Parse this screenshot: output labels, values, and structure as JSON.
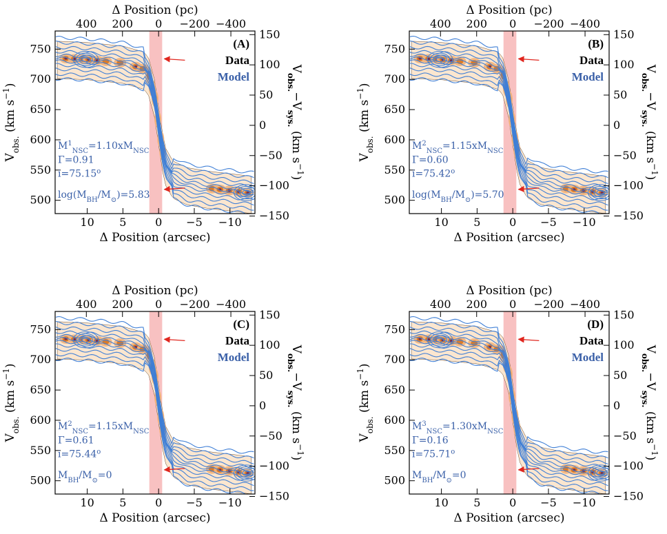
{
  "chart_data": [
    {
      "type": "contour",
      "panel_label": "(A)",
      "legend": [
        "Data",
        "Model"
      ],
      "xlabel": "Δ Position (arcsec)",
      "xlabel_top": "Δ Position (pc)",
      "ylabel": "V_obs. (km s^-1)",
      "ylabel_right": "V_obs.−V_sys. (km s^-1)",
      "xlim": [
        14.5,
        -13.5
      ],
      "ylim": [
        478,
        780
      ],
      "y_right_offset": 624,
      "xticks": [
        10,
        5,
        0,
        -5,
        -10
      ],
      "xticks_top_pc": [
        400,
        200,
        0,
        -200,
        -400
      ],
      "pc_per_arcsec": 39.5,
      "yticks": [
        500,
        550,
        600,
        650,
        700,
        750
      ],
      "yticks_right": [
        -150,
        -100,
        -50,
        0,
        50,
        100,
        150
      ],
      "shaded_region_x": [
        1.3,
        -0.5
      ],
      "arrows_y": [
        734,
        518
      ],
      "annotations": [
        "M¹NSC=1.10xMNSC",
        "Γ=0.91",
        "i=75.15°",
        "log(MBH/M⊙)=5.83"
      ],
      "rotation_curve": {
        "x": [
          14,
          10,
          5,
          2,
          1.3,
          1.0,
          0.5,
          0,
          -0.5,
          -1,
          -2,
          -4,
          -7,
          -10,
          -12.8
        ],
        "y": [
          735,
          733,
          727,
          717,
          705,
          690,
          668,
          625,
          585,
          558,
          537,
          526,
          520,
          516,
          512
        ]
      }
    },
    {
      "type": "contour",
      "panel_label": "(B)",
      "legend": [
        "Data",
        "Model"
      ],
      "xlabel": "Δ Position (arcsec)",
      "xlabel_top": "Δ Position (pc)",
      "ylabel": "V_obs. (km s^-1)",
      "ylabel_right": "V_obs.−V_sys. (km s^-1)",
      "xlim": [
        14.5,
        -13.5
      ],
      "ylim": [
        478,
        780
      ],
      "y_right_offset": 624,
      "xticks": [
        10,
        5,
        0,
        -5,
        -10
      ],
      "xticks_top_pc": [
        400,
        200,
        0,
        -200,
        -400
      ],
      "pc_per_arcsec": 39.5,
      "yticks": [
        500,
        550,
        600,
        650,
        700,
        750
      ],
      "yticks_right": [
        -150,
        -100,
        -50,
        0,
        50,
        100,
        150
      ],
      "shaded_region_x": [
        1.3,
        -0.5
      ],
      "arrows_y": [
        734,
        518
      ],
      "annotations": [
        "M²NSC=1.15xMNSC",
        "Γ=0.60",
        "i=75.42°",
        "log(MBH/M⊙)=5.70"
      ],
      "rotation_curve": {
        "x": [
          14,
          10,
          5,
          2,
          1.3,
          1.0,
          0.5,
          0,
          -0.5,
          -1,
          -2,
          -4,
          -7,
          -10,
          -12.8
        ],
        "y": [
          735,
          733,
          727,
          717,
          706,
          690,
          667,
          625,
          587,
          560,
          538,
          526,
          520,
          516,
          512
        ]
      }
    },
    {
      "type": "contour",
      "panel_label": "(C)",
      "legend": [
        "Data",
        "Model"
      ],
      "xlabel": "Δ Position (arcsec)",
      "xlabel_top": "Δ Position (pc)",
      "ylabel": "V_obs. (km s^-1)",
      "ylabel_right": "V_obs.−V_sys. (km s^-1)",
      "xlim": [
        14.5,
        -13.5
      ],
      "ylim": [
        478,
        780
      ],
      "y_right_offset": 624,
      "xticks": [
        10,
        5,
        0,
        -5,
        -10
      ],
      "xticks_top_pc": [
        400,
        200,
        0,
        -200,
        -400
      ],
      "pc_per_arcsec": 39.5,
      "yticks": [
        500,
        550,
        600,
        650,
        700,
        750
      ],
      "yticks_right": [
        -150,
        -100,
        -50,
        0,
        50,
        100,
        150
      ],
      "shaded_region_x": [
        1.3,
        -0.5
      ],
      "arrows_y": [
        734,
        518
      ],
      "annotations": [
        "M²NSC=1.15xMNSC",
        "Γ=0.61",
        "i=75.44°",
        "MBH/M⊙=0"
      ],
      "rotation_curve": {
        "x": [
          14,
          10,
          5,
          2,
          1.3,
          1.0,
          0.5,
          0,
          -0.5,
          -1,
          -2,
          -4,
          -7,
          -10,
          -12.8
        ],
        "y": [
          735,
          733,
          727,
          717,
          707,
          693,
          672,
          628,
          590,
          562,
          540,
          527,
          520,
          516,
          512
        ]
      }
    },
    {
      "type": "contour",
      "panel_label": "(D)",
      "legend": [
        "Data",
        "Model"
      ],
      "xlabel": "Δ Position (arcsec)",
      "xlabel_top": "Δ Position (pc)",
      "ylabel": "V_obs. (km s^-1)",
      "ylabel_right": "V_obs.−V_sys. (km s^-1)",
      "xlim": [
        14.5,
        -13.5
      ],
      "ylim": [
        478,
        780
      ],
      "y_right_offset": 624,
      "xticks": [
        10,
        5,
        0,
        -5,
        -10
      ],
      "xticks_top_pc": [
        400,
        200,
        0,
        -200,
        -400
      ],
      "pc_per_arcsec": 39.5,
      "yticks": [
        500,
        550,
        600,
        650,
        700,
        750
      ],
      "yticks_right": [
        -150,
        -100,
        -50,
        0,
        50,
        100,
        150
      ],
      "shaded_region_x": [
        1.3,
        -0.5
      ],
      "arrows_y": [
        734,
        518
      ],
      "annotations": [
        "M³NSC=1.30xMNSC",
        "Γ=0.16",
        "i=75.71°",
        "MBH/M⊙=0"
      ],
      "rotation_curve": {
        "x": [
          14,
          10,
          5,
          2,
          1.3,
          1.0,
          0.5,
          0,
          -0.5,
          -1,
          -2,
          -4,
          -7,
          -10,
          -12.8
        ],
        "y": [
          735,
          733,
          727,
          717,
          708,
          696,
          676,
          630,
          592,
          564,
          541,
          527,
          520,
          516,
          512
        ]
      }
    }
  ],
  "colors": {
    "model_contour": "#3f7fd6",
    "data_fill_light": "#fbe6cf",
    "data_fill_mid": "#f2b27a",
    "data_fill_dark": "#d8741f",
    "data_peak": "#7b2f4a",
    "shade": "#f7b6b6",
    "arrow": "#e0261e",
    "annotation_text": "#3a60a8"
  }
}
